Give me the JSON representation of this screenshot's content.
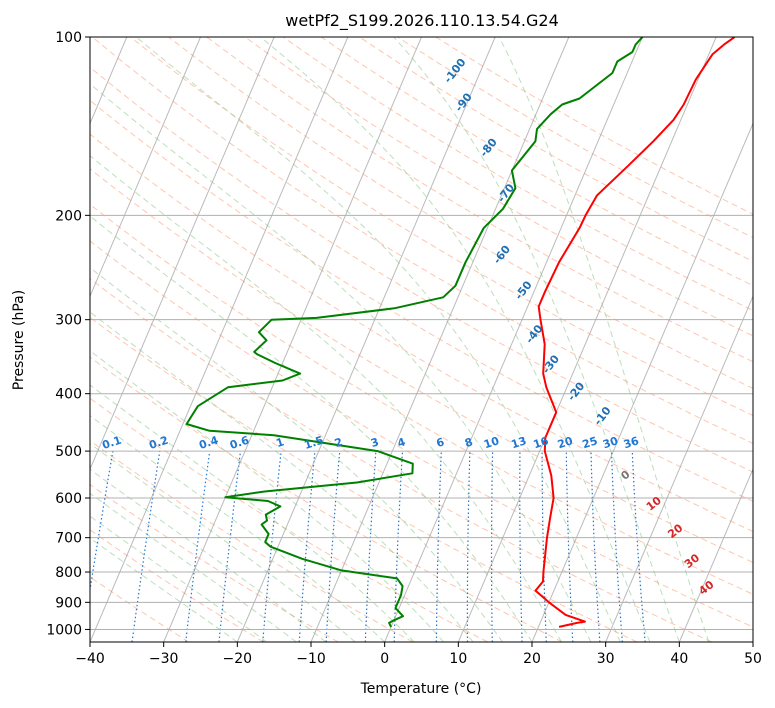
{
  "chart_data": {
    "type": "line",
    "title": "wetPf2_S199.2026.110.13.54.G24",
    "xlabel": "Temperature (°C)",
    "ylabel": "Pressure (hPa)",
    "xlim": [
      -40,
      50
    ],
    "ylim": [
      1050,
      100
    ],
    "y_scale": "log",
    "grid": true,
    "x_ticks": [
      -40,
      -30,
      -20,
      -10,
      0,
      10,
      20,
      30,
      40,
      50
    ],
    "y_ticks": [
      100,
      200,
      300,
      400,
      500,
      600,
      700,
      800,
      900,
      1000
    ],
    "colors": {
      "temperature": "#ff0000",
      "dewpoint": "#008000",
      "isotherm": "#9e9e9e",
      "dry_adiabat": "#ff9e7a",
      "moist_adiabat": "#8fc98f",
      "mixing_ratio": "#1f77d4",
      "height_label": "#1f6fb4",
      "lcl_label": "#d62728"
    },
    "series": [
      {
        "name": "",
        "kind": "temperature",
        "points": [
          [
            22.8,
            990
          ],
          [
            25,
            975
          ],
          [
            26,
            970
          ],
          [
            23,
            945
          ],
          [
            20,
            900
          ],
          [
            17.5,
            860
          ],
          [
            18,
            830
          ],
          [
            17.5,
            800
          ],
          [
            16,
            700
          ],
          [
            15.3,
            650
          ],
          [
            14.6,
            600
          ],
          [
            13,
            550
          ],
          [
            10.7,
            500
          ],
          [
            10,
            475
          ],
          [
            10,
            430
          ],
          [
            7.2,
            390
          ],
          [
            6,
            370
          ],
          [
            4.5,
            330
          ],
          [
            2.5,
            300
          ],
          [
            1.5,
            285
          ],
          [
            1.5,
            270
          ],
          [
            1.7,
            240
          ],
          [
            2.5,
            210
          ],
          [
            2.6,
            200
          ],
          [
            3,
            185
          ],
          [
            5.5,
            165
          ],
          [
            7.5,
            150
          ],
          [
            9,
            138
          ],
          [
            9.5,
            130
          ],
          [
            9.7,
            118
          ],
          [
            10.5,
            107
          ],
          [
            11.5,
            103
          ],
          [
            12.5,
            100
          ]
        ]
      },
      {
        "name": "",
        "kind": "dewpoint",
        "points": [
          [
            0,
            990
          ],
          [
            -0.5,
            975
          ],
          [
            0,
            965
          ],
          [
            1,
            950
          ],
          [
            -0.5,
            920
          ],
          [
            -0.5,
            875
          ],
          [
            -0.8,
            845
          ],
          [
            -2,
            820
          ],
          [
            -10,
            795
          ],
          [
            -16,
            760
          ],
          [
            -21,
            725
          ],
          [
            -22,
            712
          ],
          [
            -22,
            690
          ],
          [
            -23.5,
            665
          ],
          [
            -23,
            655
          ],
          [
            -23.5,
            640
          ],
          [
            -22,
            620
          ],
          [
            -24,
            607
          ],
          [
            -30,
            598
          ],
          [
            -25,
            585
          ],
          [
            -13,
            565
          ],
          [
            -6,
            545
          ],
          [
            -6.5,
            525
          ],
          [
            -12,
            500
          ],
          [
            -27,
            470
          ],
          [
            -36,
            462
          ],
          [
            -39.5,
            450
          ],
          [
            -39,
            420
          ],
          [
            -36,
            390
          ],
          [
            -29,
            380
          ],
          [
            -27,
            370
          ],
          [
            -31,
            355
          ],
          [
            -34,
            343
          ],
          [
            -34.5,
            340
          ],
          [
            -33.5,
            325
          ],
          [
            -35,
            315
          ],
          [
            -34,
            300
          ],
          [
            -28,
            298
          ],
          [
            -18,
            287
          ],
          [
            -12,
            275
          ],
          [
            -11,
            263
          ],
          [
            -11,
            240
          ],
          [
            -10.5,
            210
          ],
          [
            -9,
            195
          ],
          [
            -8.5,
            180
          ],
          [
            -10,
            168
          ],
          [
            -8.5,
            150
          ],
          [
            -9,
            143
          ],
          [
            -8,
            135
          ],
          [
            -7,
            130
          ],
          [
            -5,
            127
          ],
          [
            -2,
            115
          ],
          [
            -2,
            110
          ],
          [
            -0.5,
            106
          ],
          [
            -0.5,
            103
          ],
          [
            0,
            100
          ]
        ]
      }
    ],
    "height_labels": [
      "-100",
      "-90",
      "-80",
      "-70",
      "-60",
      "-50",
      "-40",
      "-30",
      "-20",
      "-10"
    ],
    "mixing_ratio_labels": [
      "0.1",
      "0.2",
      "0.4",
      "0.6",
      "1",
      "1.5",
      "2",
      "3",
      "4",
      "6",
      "8",
      "10",
      "13",
      "16",
      "20",
      "25",
      "30",
      "36"
    ],
    "lcl_labels": [
      "0",
      "10",
      "20",
      "30",
      "40"
    ]
  }
}
